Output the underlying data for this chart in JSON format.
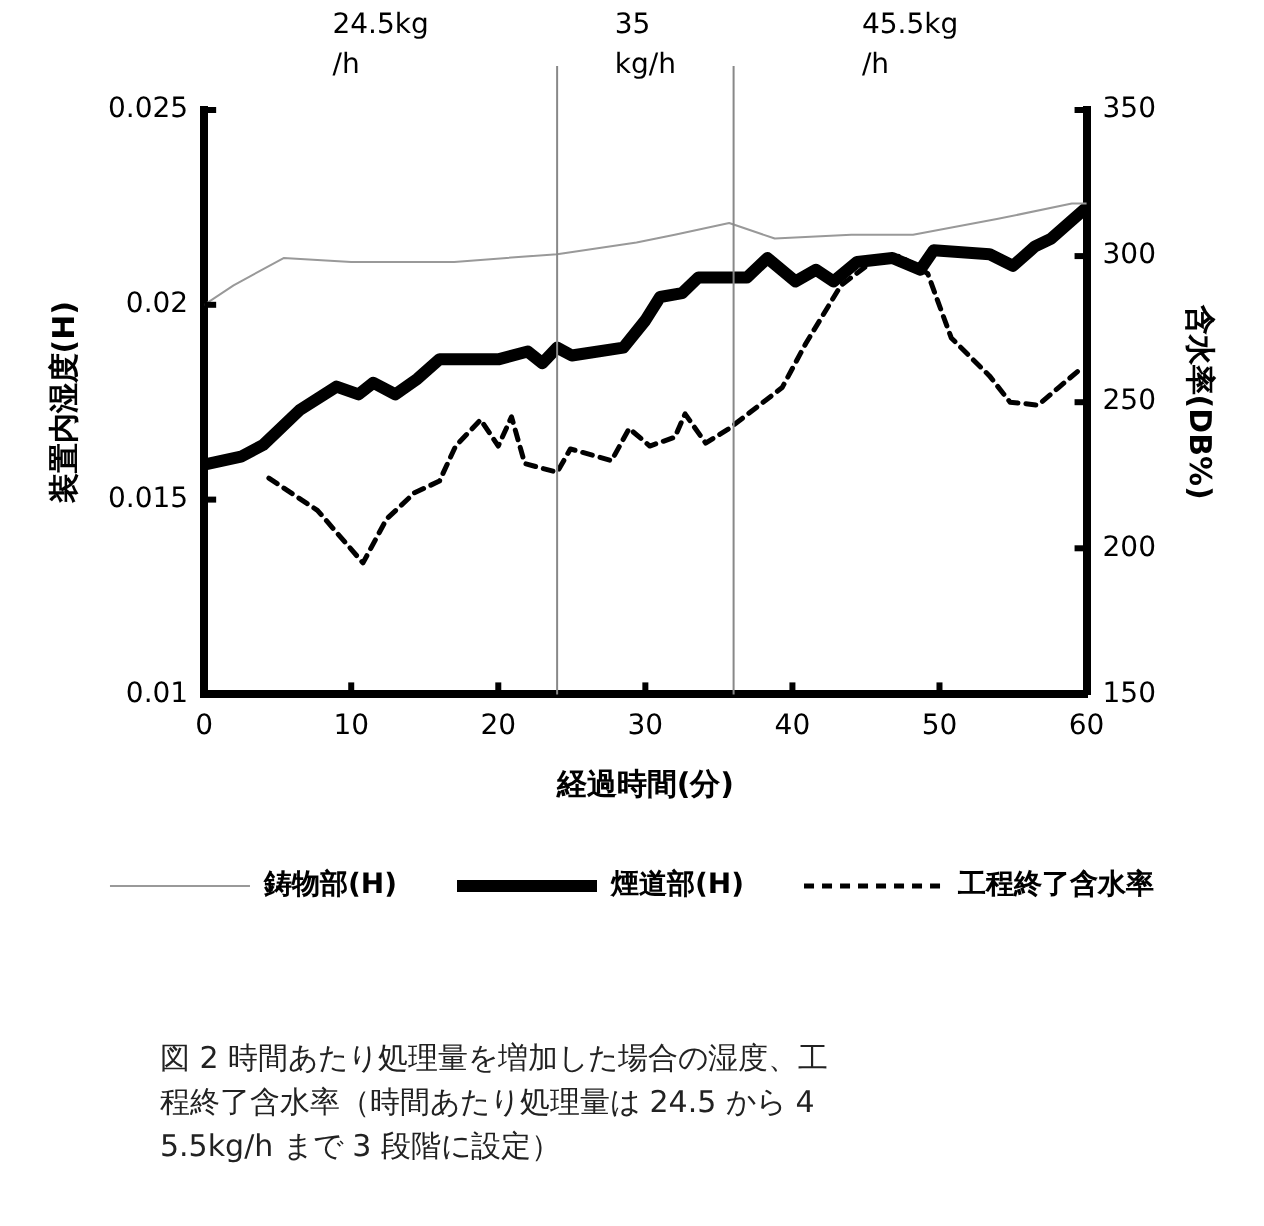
{
  "chart_data": {
    "type": "line",
    "xlabel": "経過時間(分)",
    "ylabel": "装置内湿度(H)",
    "y2label": "含水率(DB%)",
    "xlim": [
      0,
      60
    ],
    "xticks": [
      0,
      10,
      20,
      30,
      40,
      50,
      60
    ],
    "ylim": [
      0.01,
      0.025
    ],
    "yticks": [
      0.01,
      0.015,
      0.02,
      0.025
    ],
    "y2lim": [
      150,
      350
    ],
    "y2ticks": [
      150,
      200,
      250,
      300,
      350
    ],
    "legend": "bottom",
    "marker": "none",
    "ref_lines": [
      {
        "axis": "x",
        "value": 24,
        "color": "#888888"
      },
      {
        "axis": "x",
        "value": 36,
        "color": "#888888"
      }
    ],
    "series": [
      {
        "name": "鋳物部(H)",
        "color": "#999999",
        "line_style": "solid",
        "x": [
          0,
          2,
          5.4,
          10,
          17,
          24,
          29.4,
          32,
          35.7,
          38.8,
          44,
          48.2,
          53.9,
          59,
          60
        ],
        "values": [
          0.02,
          0.0205,
          0.0212,
          0.0211,
          0.0211,
          0.0213,
          0.0216,
          0.0218,
          0.0221,
          0.0217,
          0.0218,
          0.0218,
          0.0222,
          0.0226,
          0.0226
        ]
      },
      {
        "name": "煙道部(H)",
        "color": "#000000",
        "line_style": "solid",
        "x": [
          0,
          2.5,
          4,
          6.5,
          9,
          10.5,
          11.5,
          13,
          14.5,
          16,
          20,
          22,
          23,
          24,
          25,
          28.5,
          30,
          31,
          32.5,
          33.6,
          36.9,
          38.3,
          40.2,
          41.6,
          42.8,
          44.4,
          46.8,
          48.7,
          49.6,
          53.4,
          55,
          56.5,
          57.6,
          60
        ],
        "values": [
          0.0159,
          0.0161,
          0.0164,
          0.0173,
          0.0179,
          0.0177,
          0.018,
          0.0177,
          0.0181,
          0.0186,
          0.0186,
          0.0188,
          0.0185,
          0.0189,
          0.0187,
          0.0189,
          0.0196,
          0.0202,
          0.0203,
          0.0207,
          0.0207,
          0.0212,
          0.0206,
          0.0209,
          0.0206,
          0.0211,
          0.0212,
          0.0209,
          0.0214,
          0.0213,
          0.021,
          0.0215,
          0.0217,
          0.0225
        ]
      },
      {
        "name": "工程終了含水率",
        "color": "#000000",
        "line_style": "dashed",
        "axis": "y2",
        "x": [
          4.4,
          7.7,
          10.8,
          12.4,
          14.3,
          16,
          17.1,
          18.8,
          20,
          20.9,
          21.8,
          24,
          24.9,
          27.7,
          28.9,
          30.3,
          32,
          32.7,
          34.1,
          35.7,
          39.3,
          40.9,
          43.3,
          45.4,
          47.3,
          49.2,
          50.8,
          53.4,
          54.8,
          56.7,
          58.1,
          59.5
        ],
        "values": [
          224,
          213,
          195,
          210,
          219,
          223,
          235,
          244,
          235,
          245,
          229,
          226,
          234,
          230,
          241,
          235,
          238,
          246,
          236,
          241,
          255,
          270,
          290,
          298,
          300,
          294,
          272,
          259,
          250,
          249,
          255,
          261
        ]
      }
    ],
    "annotations": [
      "24.5kg\n/h",
      "35\nkg/h",
      "45.5kg\n/h",
      "図 2 時間あたり処理量を増加した場合の湿度、工程終了含水率（時間あたり処理量は 24.5 から 45.5kg/h まで 3 段階に設定）"
    ]
  }
}
